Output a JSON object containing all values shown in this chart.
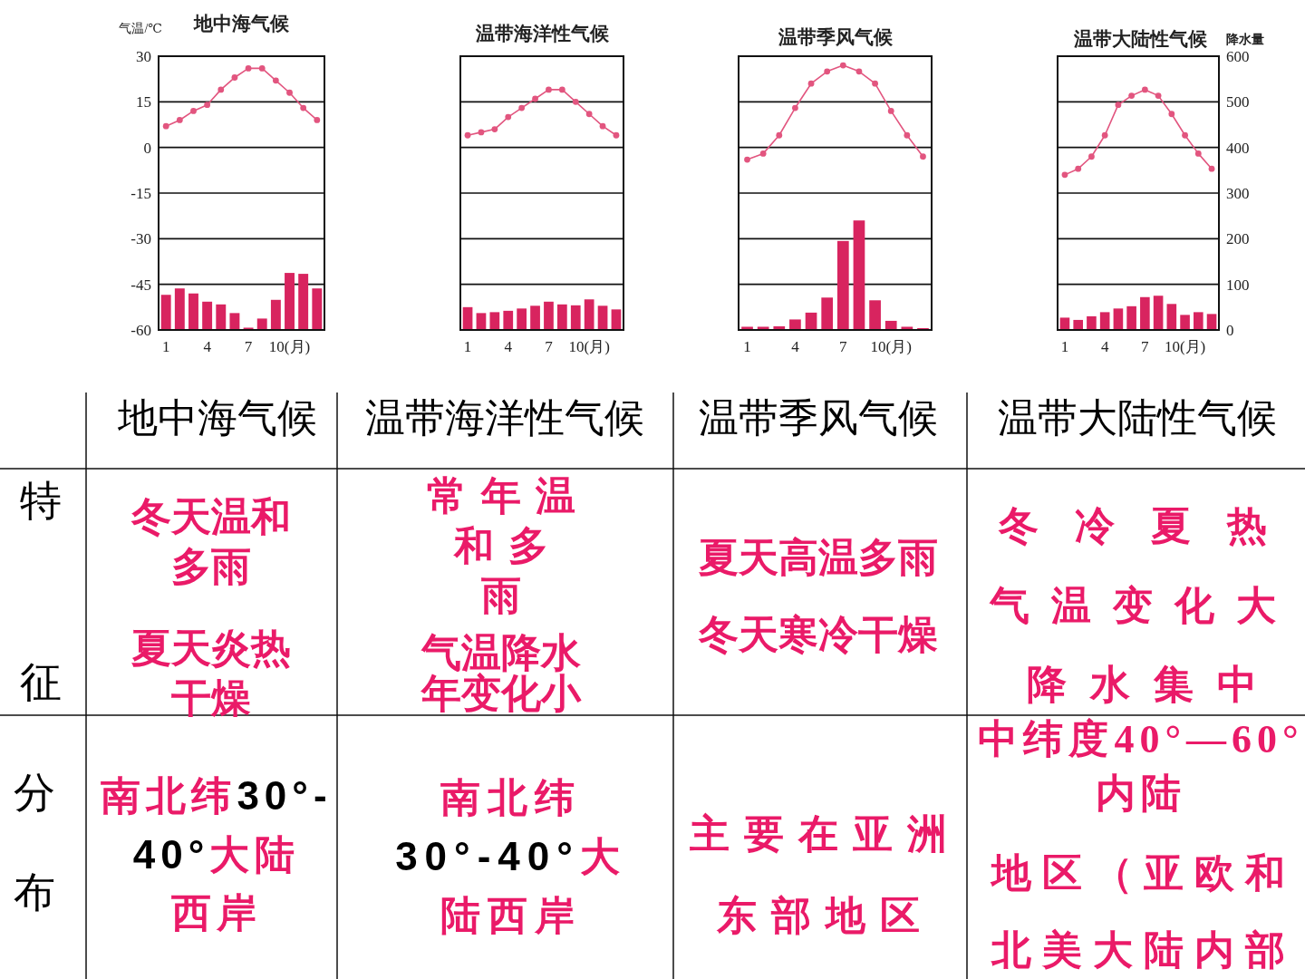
{
  "chart_data": [
    {
      "type": "bar",
      "title": "地中海气候",
      "ylabel": "气温/℃",
      "categories": [
        "1",
        null,
        null,
        "4",
        null,
        null,
        "7",
        null,
        null,
        "10(月)",
        null,
        null
      ],
      "series": [
        {
          "type": "bar",
          "axis": "y2",
          "color": "#d8245f",
          "values": [
            77,
            91,
            80,
            62,
            56,
            37,
            5,
            25,
            66,
            125,
            123,
            91
          ]
        },
        {
          "type": "line",
          "axis": "y",
          "color": "#e2557f",
          "values": [
            7,
            9,
            12,
            14,
            19,
            23,
            26,
            26,
            22,
            18,
            13,
            9
          ]
        }
      ],
      "ylim": [
        -60,
        30
      ],
      "yticks": [
        -60,
        -45,
        -30,
        -15,
        0,
        15,
        30
      ],
      "y2lim": [
        0,
        600
      ],
      "grid": "y",
      "marker": "circle",
      "tick_labels": "xy"
    },
    {
      "type": "bar",
      "title": "温带海洋性气候",
      "categories": [
        "1",
        null,
        null,
        "4",
        null,
        null,
        "7",
        null,
        null,
        "10(月)",
        null,
        null
      ],
      "series": [
        {
          "type": "bar",
          "axis": "y2",
          "color": "#d8245f",
          "values": [
            50,
            37,
            39,
            42,
            47,
            53,
            62,
            56,
            54,
            67,
            53,
            45
          ]
        },
        {
          "type": "line",
          "axis": "y",
          "color": "#e2557f",
          "values": [
            4,
            5,
            6,
            10,
            13,
            16,
            19,
            19,
            15,
            11,
            7,
            4
          ]
        }
      ],
      "ylim": [
        -60,
        30
      ],
      "yticks": [
        -60,
        -45,
        -30,
        -15,
        0,
        15,
        30
      ],
      "y2lim": [
        0,
        600
      ],
      "grid": "y",
      "marker": "circle",
      "tick_labels": "x"
    },
    {
      "type": "bar",
      "title": "温带季风气候",
      "categories": [
        "1",
        null,
        null,
        "4",
        null,
        null,
        "7",
        null,
        null,
        "10(月)",
        null,
        null
      ],
      "series": [
        {
          "type": "bar",
          "axis": "y2",
          "color": "#d8245f",
          "values": [
            7,
            7,
            8,
            23,
            38,
            71,
            195,
            240,
            65,
            20,
            7,
            4
          ]
        },
        {
          "type": "line",
          "axis": "y",
          "color": "#e2557f",
          "values": [
            -4,
            -2,
            4,
            13,
            21,
            25,
            27,
            25,
            21,
            12,
            4,
            -3
          ]
        }
      ],
      "ylim": [
        -60,
        30
      ],
      "yticks": [
        -60,
        -45,
        -30,
        -15,
        0,
        15,
        30
      ],
      "y2lim": [
        0,
        600
      ],
      "grid": "y",
      "marker": "circle",
      "tick_labels": "x"
    },
    {
      "type": "bar",
      "title": "温带大陆性气候",
      "y2label": "降水量",
      "categories": [
        "1",
        null,
        null,
        "4",
        null,
        null,
        "7",
        null,
        null,
        "10(月)",
        null,
        null
      ],
      "series": [
        {
          "type": "bar",
          "axis": "y2",
          "color": "#d8245f",
          "values": [
            27,
            22,
            30,
            39,
            47,
            52,
            72,
            75,
            57,
            33,
            39,
            35
          ]
        },
        {
          "type": "line",
          "axis": "y",
          "color": "#e2557f",
          "values": [
            -9,
            -7,
            -3,
            4,
            14,
            17,
            19,
            17,
            11,
            4,
            -2,
            -7
          ]
        }
      ],
      "ylim": [
        -60,
        30
      ],
      "y2lim": [
        0,
        600
      ],
      "y2ticks": [
        0,
        100,
        200,
        300,
        400,
        500,
        600
      ],
      "grid": "y",
      "marker": "circle"
    },
    {
      "type": "other",
      "annotations": [
        "地中海气候",
        "温带海洋性气候",
        "温带季风气候",
        "温带大陆性气候",
        "特征",
        "冬天温和多雨",
        "夏天炎热干燥",
        "常年温和多雨",
        "气温降水年变化小",
        "夏天高温多雨",
        "冬天寒冷干燥",
        "冬冷夏热",
        "气温变化大",
        "降水集中",
        "分布",
        "南北纬30°-40°大陆西岸",
        "南北纬30°-40°大陆西岸",
        "主要在亚洲东部地区",
        "中纬度40°—60°内陆",
        "地区（亚欧和北美大陆内部"
      ]
    }
  ]
}
